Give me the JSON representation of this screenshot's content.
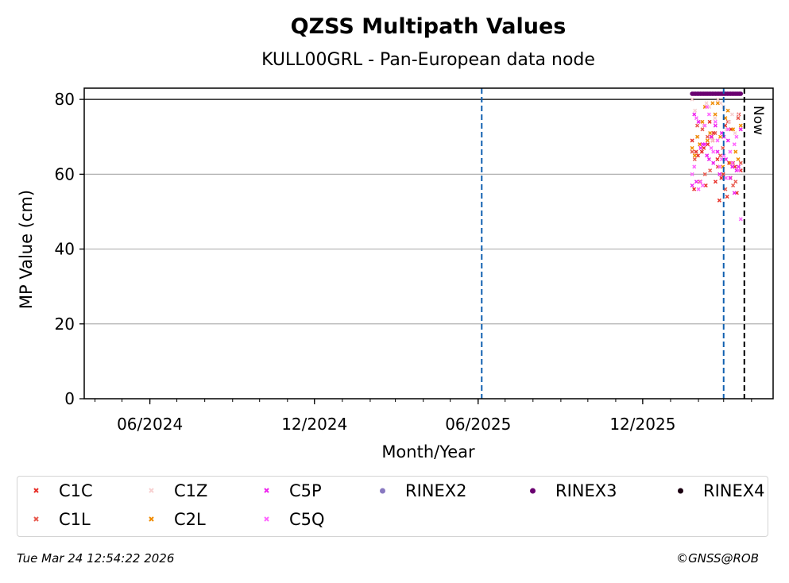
{
  "chart_data": {
    "type": "scatter",
    "title": "QZSS Multipath Values",
    "subtitle": "KULL00GRL - Pan-European data node",
    "xlabel": "Month/Year",
    "ylabel": "MP Value (cm)",
    "x_ticks": [
      "06/2024",
      "12/2024",
      "06/2025",
      "12/2025"
    ],
    "x_tick_dates": [
      "2024-06-01",
      "2024-12-01",
      "2025-06-01",
      "2025-12-01"
    ],
    "xlim": [
      "2024-03-20",
      "2026-04-25"
    ],
    "ylim": [
      0,
      83
    ],
    "y_ticks": [
      0,
      20,
      40,
      60,
      80
    ],
    "grid": "horizontal",
    "reference_line_y": 80,
    "vlines": [
      {
        "date": "2025-06-05",
        "color": "#1060b0",
        "style": "dashed"
      },
      {
        "date": "2026-03-01",
        "color": "#1060b0",
        "style": "dashed"
      },
      {
        "date": "2026-03-24",
        "color": "#000000",
        "style": "dashed",
        "label": "Now"
      }
    ],
    "data_range": {
      "start": "2026-01-25",
      "end": "2026-03-20"
    },
    "series": [
      {
        "name": "C1C",
        "color": "#e8312a",
        "marker": "x",
        "values": [
          69,
          57,
          53,
          63,
          66,
          74,
          60,
          55,
          58,
          71,
          54,
          61,
          67,
          64,
          72,
          56,
          68,
          59,
          62,
          65,
          70,
          73,
          76,
          66,
          58,
          63
        ]
      },
      {
        "name": "C1L",
        "color": "#e85a4f",
        "marker": "x",
        "values": [
          68,
          62,
          58,
          72,
          65,
          75,
          60,
          67,
          63,
          70,
          56,
          66,
          61,
          74,
          64,
          69,
          59,
          73,
          71,
          57
        ]
      },
      {
        "name": "C1Z",
        "color": "#f7d0d0",
        "marker": "x",
        "values": [
          78,
          74,
          70,
          80,
          76,
          79,
          72,
          77,
          75,
          71,
          73,
          78,
          80,
          69,
          76,
          74,
          79,
          72
        ]
      },
      {
        "name": "C2L",
        "color": "#f08c00",
        "marker": "x",
        "values": [
          76,
          72,
          68,
          79,
          66,
          74,
          70,
          64,
          78,
          62,
          73,
          69,
          75,
          67,
          71,
          77,
          65,
          79,
          63,
          70
        ]
      },
      {
        "name": "C5P",
        "color": "#ee22ee",
        "marker": "x",
        "values": [
          66,
          62,
          58,
          70,
          64,
          72,
          68,
          60,
          55,
          74,
          63,
          69,
          57,
          65,
          71,
          61,
          67,
          73,
          59,
          76,
          64,
          70,
          62,
          68
        ]
      },
      {
        "name": "C5Q",
        "color": "#ff66ff",
        "marker": "x",
        "values": [
          65,
          61,
          57,
          69,
          63,
          75,
          67,
          59,
          48,
          73,
          62,
          68,
          56,
          66,
          72,
          60,
          78,
          64,
          70,
          58,
          74,
          66,
          62,
          76
        ]
      },
      {
        "name": "RINEX2",
        "color": "#8878c0",
        "marker": "dot",
        "values": []
      },
      {
        "name": "RINEX3",
        "color": "#6a0070",
        "marker": "dot",
        "values": [
          81.5,
          81.5,
          81.5,
          81.5,
          81.5,
          81.5,
          81.5,
          81.5,
          81.5,
          81.5,
          81.5,
          81.5,
          81.5,
          81.5,
          81.5,
          81.5,
          81.5,
          81.5,
          81.5,
          81.5,
          81.5,
          81.5,
          81.5,
          81.5,
          81.5,
          81.5,
          81.5,
          81.5,
          81.5,
          81.5
        ]
      },
      {
        "name": "RINEX4",
        "color": "#1a0010",
        "marker": "dot",
        "values": []
      }
    ],
    "legend_position": "bottom"
  },
  "footer": {
    "timestamp": "Tue Mar 24 12:54:22 2026",
    "credit": "©GNSS@ROB"
  }
}
